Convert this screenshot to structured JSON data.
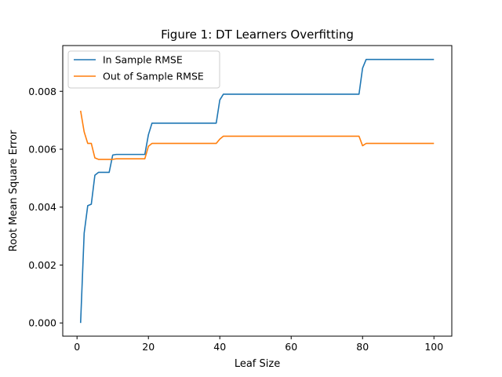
{
  "chart_data": {
    "type": "line",
    "title": "Figure 1: DT Learners Overfitting",
    "xlabel": "Leaf Size",
    "ylabel": "Root Mean Square Error",
    "xlim": [
      -4,
      105
    ],
    "ylim": [
      -0.000456,
      0.00958
    ],
    "xticks": [
      0,
      20,
      40,
      60,
      80,
      100
    ],
    "xtick_labels": [
      "0",
      "20",
      "40",
      "60",
      "80",
      "100"
    ],
    "yticks": [
      0.0,
      0.002,
      0.004,
      0.006,
      0.008
    ],
    "ytick_labels": [
      "0.000",
      "0.002",
      "0.004",
      "0.006",
      "0.008"
    ],
    "grid": false,
    "legend_position": "upper-left",
    "series": [
      {
        "name": "In Sample RMSE",
        "color": "#1f77b4",
        "points": [
          [
            1,
            0.0
          ],
          [
            2,
            0.0031
          ],
          [
            3,
            0.00405
          ],
          [
            4,
            0.0041
          ],
          [
            5,
            0.0051
          ],
          [
            6,
            0.0052
          ],
          [
            9,
            0.0052
          ],
          [
            10,
            0.0058
          ],
          [
            11,
            0.00582
          ],
          [
            19,
            0.00582
          ],
          [
            20,
            0.0065
          ],
          [
            21,
            0.0069
          ],
          [
            39,
            0.0069
          ],
          [
            40,
            0.0077
          ],
          [
            41,
            0.0079
          ],
          [
            79,
            0.0079
          ],
          [
            80,
            0.0088
          ],
          [
            81,
            0.0091
          ],
          [
            100,
            0.0091
          ]
        ]
      },
      {
        "name": "Out of Sample RMSE",
        "color": "#ff7f0e",
        "points": [
          [
            1,
            0.00733
          ],
          [
            2,
            0.0066
          ],
          [
            3,
            0.0062
          ],
          [
            4,
            0.0062
          ],
          [
            5,
            0.0057
          ],
          [
            6,
            0.00565
          ],
          [
            9,
            0.00565
          ],
          [
            10,
            0.00565
          ],
          [
            11,
            0.00567
          ],
          [
            19,
            0.00567
          ],
          [
            20,
            0.0061
          ],
          [
            21,
            0.0062
          ],
          [
            39,
            0.0062
          ],
          [
            40,
            0.00635
          ],
          [
            41,
            0.00645
          ],
          [
            79,
            0.00645
          ],
          [
            80,
            0.00612
          ],
          [
            81,
            0.0062
          ],
          [
            100,
            0.0062
          ]
        ]
      }
    ]
  }
}
